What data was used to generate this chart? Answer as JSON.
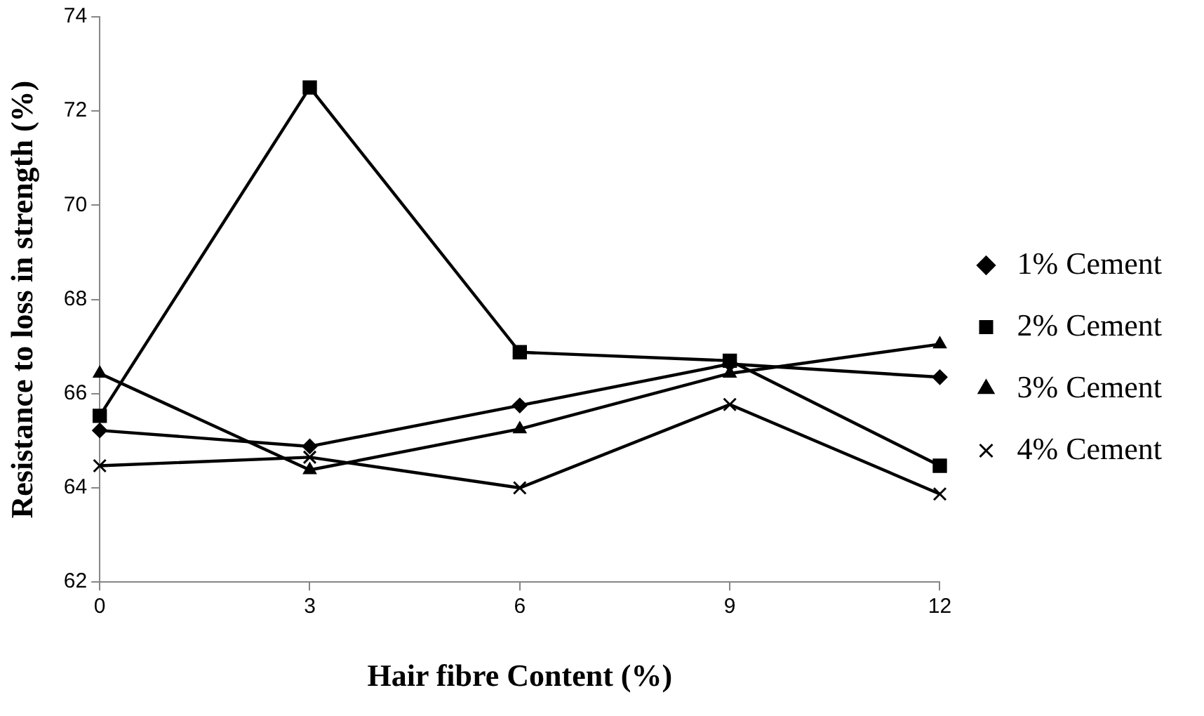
{
  "chart_data": {
    "type": "line",
    "xlabel": "Hair fibre Content (%)",
    "ylabel": "Resistance to loss in strength (%)",
    "x": [
      0,
      3,
      6,
      9,
      12
    ],
    "xlim": [
      0,
      12
    ],
    "xticks": [
      0,
      3,
      6,
      9,
      12
    ],
    "ylim": [
      62,
      74
    ],
    "yticks": [
      62,
      64,
      66,
      68,
      70,
      72,
      74
    ],
    "grid": false,
    "legend": "right",
    "series": [
      {
        "name": "1% Cement",
        "color": "#000000",
        "marker": "diamond",
        "values": [
          65.22,
          64.88,
          65.75,
          66.63,
          66.35
        ]
      },
      {
        "name": "2% Cement",
        "color": "#000000",
        "marker": "square",
        "values": [
          65.53,
          72.5,
          66.88,
          66.7,
          64.47
        ]
      },
      {
        "name": "3% Cement",
        "color": "#000000",
        "marker": "triangle",
        "values": [
          66.43,
          64.38,
          65.25,
          66.43,
          67.05
        ]
      },
      {
        "name": "4% Cement",
        "color": "#000000",
        "marker": "cross",
        "values": [
          64.47,
          64.65,
          64.0,
          65.77,
          63.87
        ]
      }
    ]
  }
}
